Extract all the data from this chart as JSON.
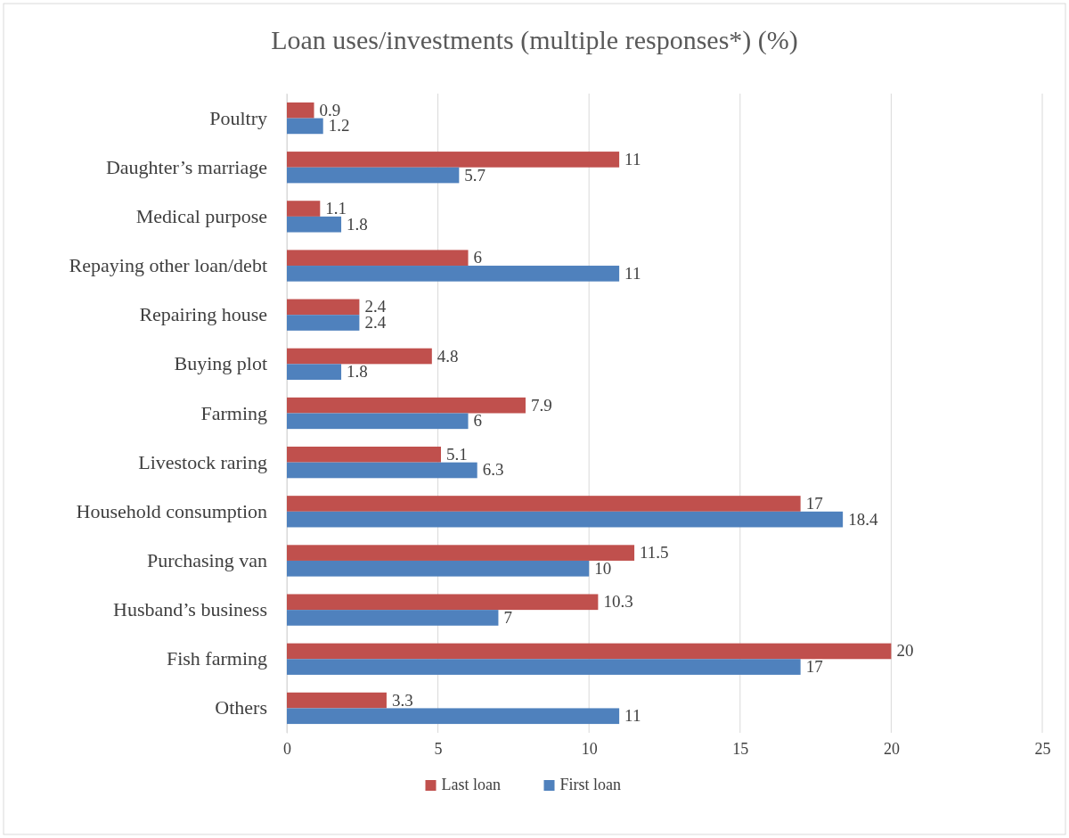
{
  "chart_data": {
    "type": "bar",
    "orientation": "horizontal",
    "title": "Loan uses/investments (multiple responses*)  (%)",
    "categories": [
      "Poultry",
      "Daughter’s marriage",
      "Medical purpose",
      "Repaying other loan/debt",
      "Repairing house",
      "Buying plot",
      "Farming",
      "Livestock raring",
      "Household consumption",
      "Purchasing van",
      "Husband’s business",
      "Fish farming",
      "Others"
    ],
    "series": [
      {
        "name": "Last loan",
        "color": "#c0504d",
        "values": [
          0.9,
          11,
          1.1,
          6,
          2.4,
          4.8,
          7.9,
          5.1,
          17,
          11.5,
          10.3,
          20,
          3.3
        ]
      },
      {
        "name": "First loan",
        "color": "#4f81bd",
        "values": [
          1.2,
          5.7,
          1.8,
          11,
          2.4,
          1.8,
          6,
          6.3,
          18.4,
          10,
          7,
          17,
          11
        ]
      }
    ],
    "xlim": [
      0,
      25
    ],
    "xticks": [
      0,
      5,
      10,
      15,
      20,
      25
    ],
    "grid": "x",
    "legend": "bottom",
    "data_labels": true
  }
}
